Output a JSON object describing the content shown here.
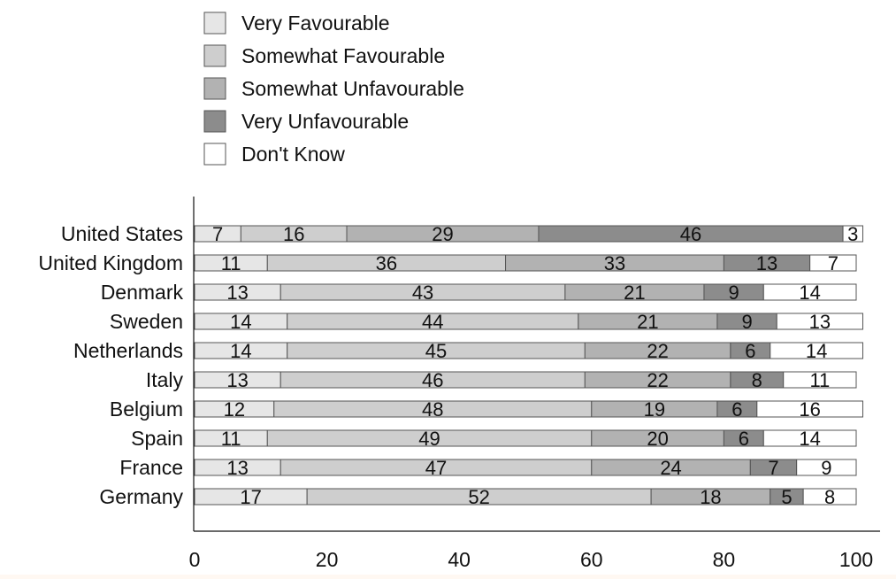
{
  "chart_data": {
    "type": "bar",
    "orientation": "horizontal",
    "stacked": true,
    "categories": [
      "United States",
      "United Kingdom",
      "Denmark",
      "Sweden",
      "Netherlands",
      "Italy",
      "Belgium",
      "Spain",
      "France",
      "Germany"
    ],
    "series": [
      {
        "name": "Very Favourable",
        "color": "#e6e6e6",
        "values": [
          7,
          11,
          13,
          14,
          14,
          13,
          12,
          11,
          13,
          17
        ]
      },
      {
        "name": "Somewhat Favourable",
        "color": "#cecece",
        "values": [
          16,
          36,
          43,
          44,
          45,
          46,
          48,
          49,
          47,
          52
        ]
      },
      {
        "name": "Somewhat Unfavourable",
        "color": "#b2b2b2",
        "values": [
          29,
          33,
          21,
          21,
          22,
          22,
          19,
          20,
          24,
          18
        ]
      },
      {
        "name": "Very Unfavourable",
        "color": "#8c8c8c",
        "values": [
          46,
          13,
          9,
          9,
          6,
          8,
          6,
          6,
          7,
          5
        ]
      },
      {
        "name": "Don't Know",
        "color": "#ffffff",
        "values": [
          3,
          7,
          14,
          13,
          14,
          11,
          16,
          14,
          9,
          8
        ]
      }
    ],
    "xlim": [
      0,
      100
    ],
    "xticks": [
      "0",
      "20",
      "40",
      "60",
      "80",
      "100"
    ],
    "title": "",
    "xlabel": "",
    "ylabel": "",
    "grid": false,
    "legend_position": "top-left"
  }
}
